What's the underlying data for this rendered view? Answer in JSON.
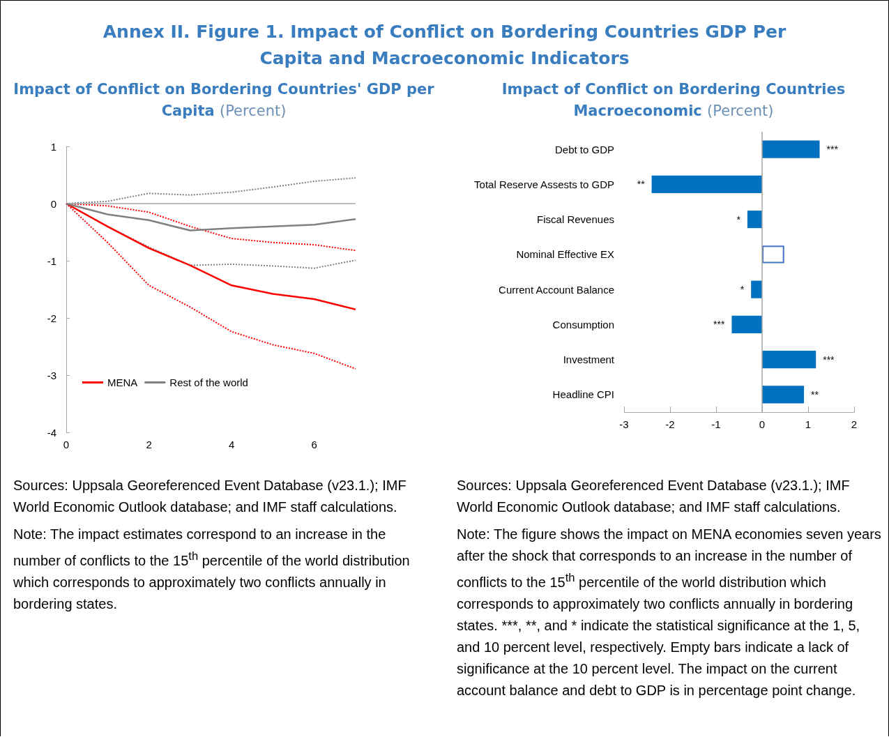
{
  "chart_data": [
    {
      "type": "other",
      "title": "Annex II. Figure 1. Impact of Conflict on Bordering Countries GDP Per Capita and Macroeconomic Indicators"
    },
    {
      "type": "line",
      "title": "Impact of Conflict on Bordering Countries' GDP per Capita",
      "subtitle": "(Percent)",
      "x": [
        0,
        1,
        2,
        3,
        4,
        5,
        6,
        7
      ],
      "series": [
        {
          "name": "MENA",
          "color": "#ff0000",
          "values": [
            0,
            -0.4,
            -0.78,
            -1.08,
            -1.43,
            -1.58,
            -1.67,
            -1.85
          ]
        },
        {
          "name": "Rest of the world",
          "color": "#808080",
          "values": [
            0,
            -0.19,
            -0.29,
            -0.47,
            -0.43,
            -0.4,
            -0.37,
            -0.27
          ]
        },
        {
          "color": "#ff0000",
          "line_style": "dotted",
          "values": [
            0,
            -0.68,
            -1.43,
            -1.81,
            -2.24,
            -2.47,
            -2.62,
            -2.89
          ]
        },
        {
          "color": "#ff0000",
          "line_style": "dotted",
          "values": [
            0,
            -0.04,
            -0.15,
            -0.4,
            -0.61,
            -0.68,
            -0.72,
            -0.82
          ]
        },
        {
          "color": "#808080",
          "line_style": "dotted",
          "values": [
            0,
            -0.4,
            -0.76,
            -1.08,
            -1.06,
            -1.09,
            -1.13,
            -0.99
          ]
        },
        {
          "color": "#808080",
          "line_style": "dotted",
          "values": [
            0,
            0.04,
            0.18,
            0.15,
            0.2,
            0.29,
            0.39,
            0.45
          ]
        }
      ],
      "xlim": [
        0,
        7
      ],
      "xticks": [
        0,
        2,
        4,
        6
      ],
      "ylim": [
        -4,
        1
      ],
      "yticks": [
        -4,
        -3,
        -2,
        -1,
        0,
        1
      ],
      "grid": false,
      "legend": "bottom left",
      "marker": "none",
      "line_style": "solid",
      "ref_lines": [
        {
          "axis": "y",
          "value": 0,
          "label": null,
          "color": "#a6a6a6"
        }
      ],
      "annotations": [
        "Sources: Uppsala Georeferenced Event Database (v23.1.); IMF World Economic Outlook database; and IMF staff calculations.",
        "Note: The impact estimates correspond to an increase in the number of conflicts to the 15$^{th}$ percentile of the world distribution which corresponds to approximately two conflicts annually in bordering states."
      ]
    },
    {
      "type": "bar",
      "orientation": "horizontal",
      "title": "Impact of Conflict on Bordering Countries Macroeconomic",
      "subtitle": "(Percent)",
      "categories": [
        "Debt to GDP",
        "Total Reserve Assests to GDP",
        "Fiscal Revenues",
        "Nominal Effective EX",
        "Current Account Balance",
        "Consumption",
        "Investment",
        "Headline CPI"
      ],
      "values": [
        1.25,
        -2.4,
        -0.32,
        0.48,
        -0.24,
        -0.66,
        1.17,
        0.91
      ],
      "colors": [
        "#0070c0",
        "#0070c0",
        "#0070c0",
        "#4472c4",
        "#0070c0",
        "#0070c0",
        "#0070c0",
        "#0070c0"
      ],
      "value_labels": [
        "***",
        "**",
        "*",
        null,
        "*",
        "***",
        "***",
        "**"
      ],
      "xlim": [
        -3,
        2
      ],
      "xticks": [
        -3,
        -2,
        -1,
        0,
        1,
        2
      ],
      "grid": false,
      "ref_lines": [
        {
          "axis": "x",
          "value": 0,
          "label": null,
          "color": "#a6a6a6"
        }
      ],
      "annotations": [
        "Sources: Uppsala Georeferenced Event Database (v23.1.); IMF World Economic Outlook database; and IMF staff calculations.",
        "Note: The figure shows the impact on MENA economies seven years after the shock that corresponds to an increase in the number of conflicts to the 15$^{th}$ percentile of the world distribution which corresponds to approximately two conflicts annually in bordering states. ***, **, and * indicate the statistical significance at the 1, 5, and 10 percent level, respectively. Empty bars indicate a lack of significance at the 10 percent level. The impact on the current account balance and debt to GDP is in percentage point change."
      ]
    }
  ]
}
